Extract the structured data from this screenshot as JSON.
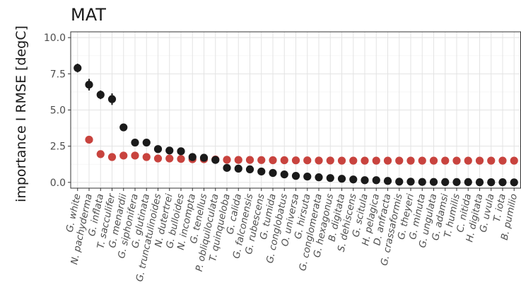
{
  "chart_data": {
    "type": "scatter",
    "title": "MAT",
    "ylabel": "importance I RMSE [degC]",
    "xlabel": "",
    "ylim": [
      -0.4,
      10.4
    ],
    "yticks": [
      0.0,
      2.5,
      5.0,
      7.5,
      10.0
    ],
    "ytick_labels": [
      "0.0",
      "2.5",
      "5.0",
      "7.5",
      "10.0"
    ],
    "grid": true,
    "legend": "none",
    "categories": [
      "G. white",
      "N. pachyderma",
      "G. inflata",
      "T. sacculifer",
      "G. menardii",
      "G. siphonifera",
      "G. glutinata",
      "G. truncatulinoides",
      "N. dutertrei",
      "G. bulloides",
      "N. incompta",
      "G. tenellus",
      "P. obliquiloculata",
      "T. quinqueloba",
      "G. calida",
      "G. falconensis",
      "G. rubescens",
      "G. tumida",
      "G. conglobatus",
      "O. universa",
      "G. hirsuta",
      "G. conglomerata",
      "G. hexagonus",
      "B. digitata",
      "S. dehiscens",
      "G. scitula",
      "H. pelagica",
      "D. anfracta",
      "G. crassaformis",
      "G. theyeri",
      "G. minuta",
      "G. ungulata",
      "G. adamsi",
      "T. humilis",
      "C. nitida",
      "H. digitata",
      "G. uvula",
      "T. iota",
      "B. pumilio"
    ],
    "series": [
      {
        "color": "#1a1a1a",
        "values": [
          7.9,
          6.75,
          6.05,
          5.75,
          3.8,
          2.75,
          2.75,
          2.3,
          2.2,
          2.15,
          1.75,
          1.7,
          1.55,
          1.0,
          0.95,
          0.9,
          0.75,
          0.65,
          0.55,
          0.45,
          0.4,
          0.35,
          0.3,
          0.25,
          0.2,
          0.15,
          0.15,
          0.1,
          0.05,
          0.05,
          0.03,
          0.03,
          0.02,
          0.02,
          0.02,
          0.01,
          0.01,
          0.01,
          0.0
        ],
        "errors": [
          0.3,
          0.4,
          0.3,
          0.4,
          0.15,
          0.12,
          0.12,
          0.1,
          0.1,
          0.1,
          0.08,
          0.08,
          0.05,
          0.05,
          0.05,
          0.05,
          0.04,
          0.04,
          0.04,
          0.03,
          0.03,
          0.03,
          0.03,
          0.03,
          0.02,
          0.02,
          0.02,
          0.02,
          0.02,
          0.02,
          0.02,
          0.02,
          0.01,
          0.01,
          0.01,
          0.01,
          0.01,
          0.01,
          0.01
        ]
      },
      {
        "color": "#c8433e",
        "values": [
          null,
          2.95,
          1.95,
          1.75,
          1.85,
          1.85,
          1.75,
          1.65,
          1.65,
          1.62,
          1.6,
          1.6,
          1.58,
          1.56,
          1.55,
          1.55,
          1.54,
          1.53,
          1.53,
          1.52,
          1.52,
          1.51,
          1.51,
          1.5,
          1.5,
          1.5,
          1.5,
          1.5,
          1.5,
          1.5,
          1.5,
          1.5,
          1.5,
          1.5,
          1.5,
          1.5,
          1.5,
          1.5,
          1.5
        ]
      }
    ]
  }
}
